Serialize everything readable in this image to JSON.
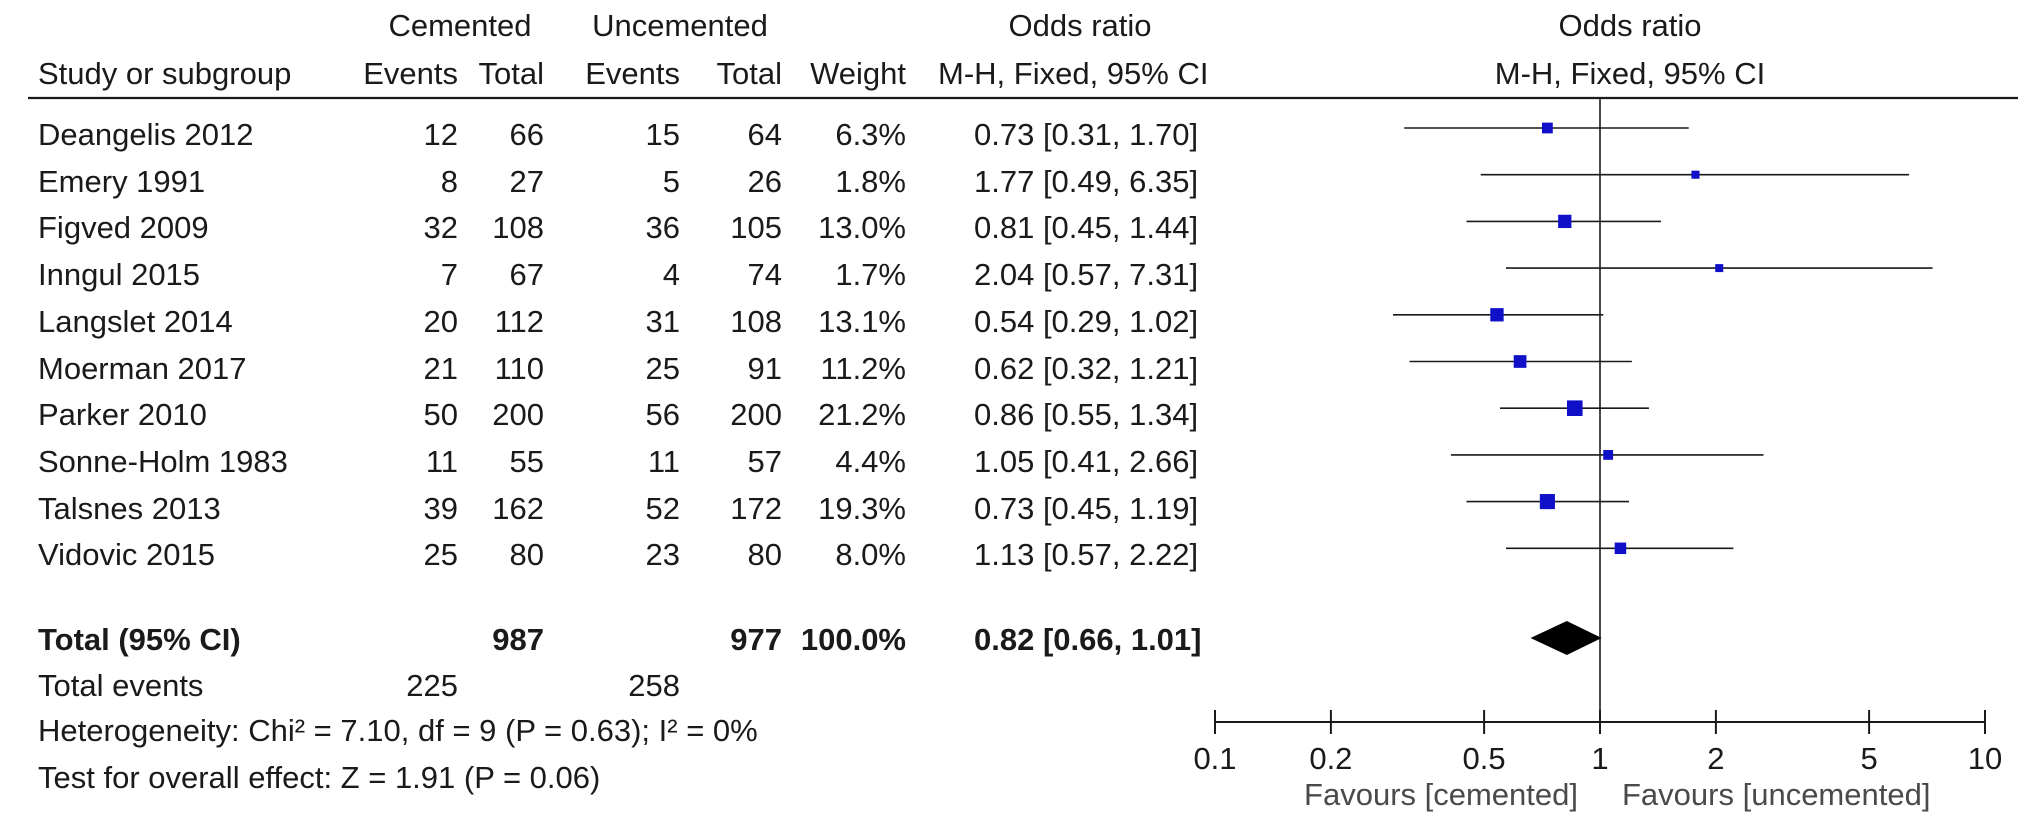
{
  "headers": {
    "group_cemented": "Cemented",
    "group_uncemented": "Uncemented",
    "or_title": "Odds ratio",
    "study": "Study or subgroup",
    "events": "Events",
    "total": "Total",
    "weight": "Weight",
    "method": "M-H, Fixed, 95% CI",
    "plot_title": "Odds ratio",
    "plot_method": "M-H, Fixed, 95% CI"
  },
  "chart_data": {
    "type": "forest",
    "title": "",
    "xscale": "log",
    "xlim": [
      0.1,
      10
    ],
    "reference_line": 1,
    "ticks": [
      0.1,
      0.2,
      0.5,
      1,
      2,
      5,
      10
    ],
    "tick_labels": [
      "0.1",
      "0.2",
      "0.5",
      "1",
      "2",
      "5",
      "10"
    ],
    "favours_left": "Favours [cemented]",
    "favours_right": "Favours [uncemented]",
    "marker_color": "#1010c8",
    "studies": [
      {
        "name": "Deangelis 2012",
        "events_c": "12",
        "total_c": "66",
        "events_u": "15",
        "total_u": "64",
        "weight_label": "6.3%",
        "weight": 6.3,
        "ci_label": "0.73 [0.31, 1.70]",
        "or": 0.73,
        "lo": 0.31,
        "hi": 1.7
      },
      {
        "name": "Emery 1991",
        "events_c": "8",
        "total_c": "27",
        "events_u": "5",
        "total_u": "26",
        "weight_label": "1.8%",
        "weight": 1.8,
        "ci_label": "1.77 [0.49, 6.35]",
        "or": 1.77,
        "lo": 0.49,
        "hi": 6.35
      },
      {
        "name": "Figved 2009",
        "events_c": "32",
        "total_c": "108",
        "events_u": "36",
        "total_u": "105",
        "weight_label": "13.0%",
        "weight": 13.0,
        "ci_label": "0.81 [0.45, 1.44]",
        "or": 0.81,
        "lo": 0.45,
        "hi": 1.44
      },
      {
        "name": "Inngul 2015",
        "events_c": "7",
        "total_c": "67",
        "events_u": "4",
        "total_u": "74",
        "weight_label": "1.7%",
        "weight": 1.7,
        "ci_label": "2.04 [0.57, 7.31]",
        "or": 2.04,
        "lo": 0.57,
        "hi": 7.31
      },
      {
        "name": "Langslet 2014",
        "events_c": "20",
        "total_c": "112",
        "events_u": "31",
        "total_u": "108",
        "weight_label": "13.1%",
        "weight": 13.1,
        "ci_label": "0.54 [0.29, 1.02]",
        "or": 0.54,
        "lo": 0.29,
        "hi": 1.02
      },
      {
        "name": "Moerman 2017",
        "events_c": "21",
        "total_c": "110",
        "events_u": "25",
        "total_u": "91",
        "weight_label": "11.2%",
        "weight": 11.2,
        "ci_label": "0.62 [0.32, 1.21]",
        "or": 0.62,
        "lo": 0.32,
        "hi": 1.21
      },
      {
        "name": "Parker 2010",
        "events_c": "50",
        "total_c": "200",
        "events_u": "56",
        "total_u": "200",
        "weight_label": "21.2%",
        "weight": 21.2,
        "ci_label": "0.86 [0.55, 1.34]",
        "or": 0.86,
        "lo": 0.55,
        "hi": 1.34
      },
      {
        "name": "Sonne-Holm 1983",
        "events_c": "11",
        "total_c": "55",
        "events_u": "11",
        "total_u": "57",
        "weight_label": "4.4%",
        "weight": 4.4,
        "ci_label": "1.05 [0.41, 2.66]",
        "or": 1.05,
        "lo": 0.41,
        "hi": 2.66
      },
      {
        "name": "Talsnes 2013",
        "events_c": "39",
        "total_c": "162",
        "events_u": "52",
        "total_u": "172",
        "weight_label": "19.3%",
        "weight": 19.3,
        "ci_label": "0.73 [0.45, 1.19]",
        "or": 0.73,
        "lo": 0.45,
        "hi": 1.19
      },
      {
        "name": "Vidovic 2015",
        "events_c": "25",
        "total_c": "80",
        "events_u": "23",
        "total_u": "80",
        "weight_label": "8.0%",
        "weight": 8.0,
        "ci_label": "1.13 [0.57, 2.22]",
        "or": 1.13,
        "lo": 0.57,
        "hi": 2.22
      }
    ],
    "total": {
      "name": "Total (95% CI)",
      "total_c": "987",
      "total_u": "977",
      "weight_label": "100.0%",
      "ci_label": "0.82 [0.66, 1.01]",
      "or": 0.82,
      "lo": 0.66,
      "hi": 1.01
    },
    "total_events": {
      "label": "Total events",
      "events_c": "225",
      "events_u": "258"
    },
    "heterogeneity": "Heterogeneity: Chi² = 7.10, df = 9 (P = 0.63); I² = 0%",
    "overall_effect": "Test for overall effect: Z = 1.91 (P = 0.06)"
  }
}
